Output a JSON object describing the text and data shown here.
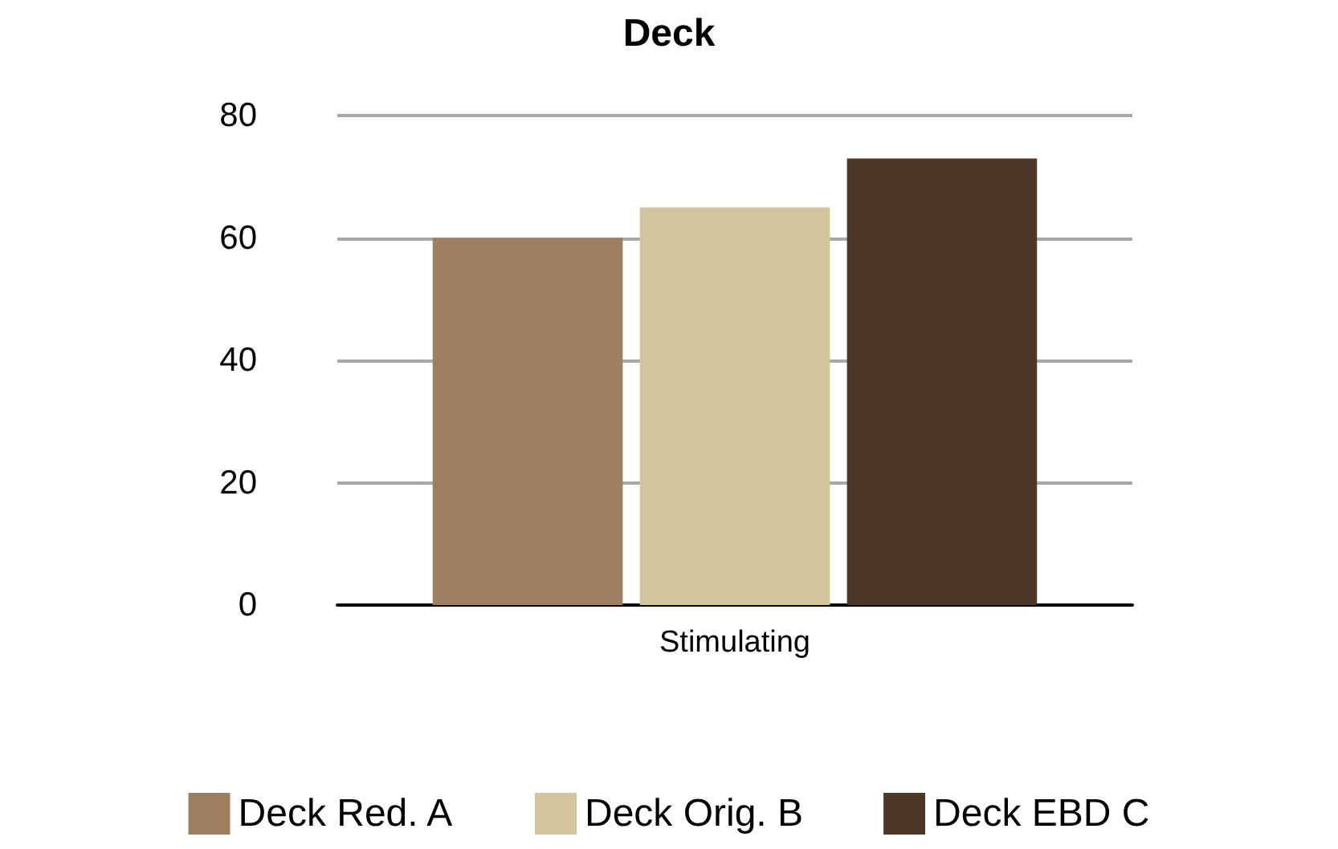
{
  "chart_data": {
    "type": "bar",
    "title": "Deck",
    "categories": [
      "Stimulating"
    ],
    "series": [
      {
        "name": "Deck Red. A",
        "color": "#9e8060",
        "values": [
          60
        ]
      },
      {
        "name": "Deck Orig. B",
        "color": "#d4c49c",
        "values": [
          65
        ]
      },
      {
        "name": "Deck EBD C",
        "color": "#4d3828",
        "values": [
          73
        ]
      }
    ],
    "ylim": [
      0,
      80
    ],
    "yticks": [
      0,
      20,
      40,
      60,
      80
    ],
    "grid": "y",
    "legend": "bottom"
  }
}
